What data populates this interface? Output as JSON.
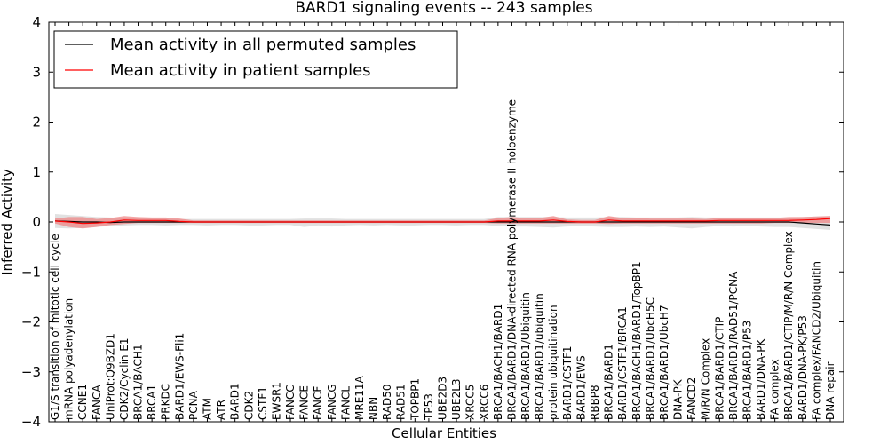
{
  "chart_data": {
    "type": "line",
    "title": "BARD1 signaling events -- 243 samples",
    "xlabel": "Cellular Entities",
    "ylabel": "Inferred Activity",
    "ylim": [
      -4,
      4
    ],
    "yticks": [
      4,
      3,
      2,
      1,
      0,
      -1,
      -2,
      -3,
      -4
    ],
    "ytick_labels": [
      "4",
      "3",
      "2",
      "1",
      "0",
      "−1",
      "−2",
      "−3",
      "−4"
    ],
    "grid": false,
    "legend_position": "top-left",
    "categories": [
      "G1/S transition of mitotic cell cycle",
      "mRNA polyadenylation",
      "CCNE1",
      "FANCA",
      "UniProt:Q9BZD1",
      "CDK2/Cyclin E1",
      "BRCA1/BACH1",
      "BRCA1",
      "PRKDC",
      "BARD1/EWS-Fli1",
      "PCNA",
      "ATM",
      "ATR",
      "BARD1",
      "CDK2",
      "CSTF1",
      "EWSR1",
      "FANCC",
      "FANCE",
      "FANCF",
      "FANCG",
      "FANCL",
      "MRE11A",
      "NBN",
      "RAD50",
      "RAD51",
      "TOPBP1",
      "TP53",
      "UBE2D3",
      "UBE2L3",
      "XRCC5",
      "XRCC6",
      "BRCA1/BACH1/BARD1",
      "BRCA1/BARD1/DNA-directed RNA polymerase II holoenzyme",
      "BRCA1/BARD1/Ubiquitin",
      "BRCA1/BARD1/ubiquitin",
      "protein ubiquitination",
      "BARD1/CSTF1",
      "BARD1/EWS",
      "RBBP8",
      "BRCA1/BARD1",
      "BARD1/CSTF1/BRCA1",
      "BRCA1/BACH1/BARD1/TopBP1",
      "BRCA1/BARD1/UbcH5C",
      "BRCA1/BARD1/UbcH7",
      "DNA-PK",
      "FANCD2",
      "M/R/N Complex",
      "BRCA1/BARD1/CTIP",
      "BRCA1/BARD1/RAD51/PCNA",
      "BRCA1/BARD1/P53",
      "BARD1/DNA-PK",
      "FA complex",
      "BRCA1/BARD1/CTIP/M/R/N Complex",
      "BARD1/DNA-PK/P53",
      "FA complex/FANCD2/Ubiquitin",
      "DNA repair"
    ],
    "series": [
      {
        "name": "Mean activity in all permuted samples",
        "color": "#000000",
        "values": [
          0.02,
          0.01,
          0.0,
          0.0,
          -0.01,
          0.0,
          0.0,
          0.0,
          0.0,
          0.0,
          0.0,
          0.0,
          0.0,
          0.0,
          0.0,
          0.0,
          0.0,
          0.0,
          0.0,
          0.0,
          0.0,
          0.0,
          0.0,
          0.0,
          0.0,
          0.0,
          0.0,
          0.0,
          0.0,
          0.0,
          0.0,
          0.0,
          0.0,
          0.0,
          0.0,
          0.0,
          0.0,
          0.0,
          0.0,
          0.0,
          0.0,
          0.0,
          0.0,
          0.0,
          0.0,
          0.0,
          0.0,
          0.0,
          0.0,
          0.0,
          0.0,
          0.0,
          0.0,
          0.0,
          -0.02,
          -0.04,
          -0.06
        ],
        "band_low": [
          -0.12,
          -0.13,
          -0.12,
          -0.1,
          -0.08,
          -0.07,
          -0.06,
          -0.06,
          -0.07,
          -0.06,
          -0.06,
          -0.07,
          -0.06,
          -0.06,
          -0.07,
          -0.07,
          -0.06,
          -0.06,
          -0.1,
          -0.07,
          -0.09,
          -0.07,
          -0.06,
          -0.07,
          -0.06,
          -0.07,
          -0.07,
          -0.06,
          -0.06,
          -0.07,
          -0.06,
          -0.06,
          -0.08,
          -0.09,
          -0.09,
          -0.1,
          -0.11,
          -0.09,
          -0.08,
          -0.09,
          -0.1,
          -0.1,
          -0.09,
          -0.1,
          -0.09,
          -0.11,
          -0.13,
          -0.1,
          -0.08,
          -0.09,
          -0.08,
          -0.09,
          -0.1,
          -0.1,
          -0.12,
          -0.14,
          -0.16
        ],
        "band_high": [
          0.16,
          0.14,
          0.12,
          0.1,
          0.09,
          0.08,
          0.08,
          0.07,
          0.07,
          0.06,
          0.06,
          0.06,
          0.06,
          0.06,
          0.06,
          0.06,
          0.06,
          0.06,
          0.07,
          0.07,
          0.07,
          0.06,
          0.06,
          0.06,
          0.06,
          0.06,
          0.06,
          0.06,
          0.06,
          0.06,
          0.06,
          0.06,
          0.1,
          0.1,
          0.1,
          0.1,
          0.1,
          0.09,
          0.09,
          0.09,
          0.1,
          0.1,
          0.09,
          0.09,
          0.09,
          0.09,
          0.1,
          0.09,
          0.09,
          0.09,
          0.09,
          0.09,
          0.09,
          0.09,
          0.1,
          0.11,
          0.12
        ],
        "band_color": "#c8c8c8"
      },
      {
        "name": "Mean activity in patient samples",
        "color": "#ff0000",
        "values": [
          0.02,
          0.0,
          -0.03,
          -0.02,
          0.0,
          0.04,
          0.03,
          0.03,
          0.03,
          0.01,
          0.0,
          0.0,
          0.0,
          0.0,
          0.0,
          0.0,
          0.0,
          0.0,
          0.0,
          0.0,
          0.0,
          0.0,
          0.0,
          0.0,
          0.0,
          0.0,
          0.0,
          0.0,
          0.0,
          0.0,
          0.0,
          0.0,
          0.02,
          0.02,
          0.02,
          0.02,
          0.04,
          0.01,
          0.0,
          0.0,
          0.04,
          0.02,
          0.02,
          0.02,
          0.02,
          0.02,
          0.02,
          0.02,
          0.03,
          0.03,
          0.03,
          0.03,
          0.03,
          0.03,
          0.04,
          0.05,
          0.07
        ],
        "band_low": [
          -0.03,
          -0.1,
          -0.13,
          -0.1,
          -0.06,
          -0.04,
          -0.02,
          -0.02,
          -0.02,
          -0.02,
          -0.02,
          -0.02,
          -0.02,
          -0.02,
          -0.02,
          -0.02,
          -0.02,
          -0.02,
          -0.02,
          -0.02,
          -0.02,
          -0.02,
          -0.02,
          -0.02,
          -0.02,
          -0.02,
          -0.02,
          -0.02,
          -0.02,
          -0.02,
          -0.02,
          -0.02,
          -0.03,
          -0.03,
          -0.03,
          -0.03,
          -0.03,
          -0.03,
          -0.03,
          -0.03,
          -0.04,
          -0.03,
          -0.03,
          -0.03,
          -0.03,
          -0.03,
          -0.03,
          -0.03,
          -0.03,
          -0.03,
          -0.03,
          -0.03,
          -0.02,
          -0.02,
          -0.02,
          -0.02,
          -0.02
        ],
        "band_high": [
          0.07,
          0.1,
          0.1,
          0.06,
          0.08,
          0.12,
          0.1,
          0.09,
          0.09,
          0.07,
          0.03,
          0.03,
          0.03,
          0.03,
          0.03,
          0.03,
          0.03,
          0.03,
          0.03,
          0.03,
          0.03,
          0.03,
          0.03,
          0.03,
          0.03,
          0.03,
          0.03,
          0.03,
          0.03,
          0.03,
          0.03,
          0.03,
          0.08,
          0.1,
          0.08,
          0.08,
          0.12,
          0.05,
          0.04,
          0.04,
          0.12,
          0.08,
          0.08,
          0.07,
          0.07,
          0.07,
          0.07,
          0.06,
          0.08,
          0.08,
          0.08,
          0.08,
          0.08,
          0.1,
          0.1,
          0.11,
          0.12
        ],
        "band_color": "#f08080"
      }
    ]
  }
}
